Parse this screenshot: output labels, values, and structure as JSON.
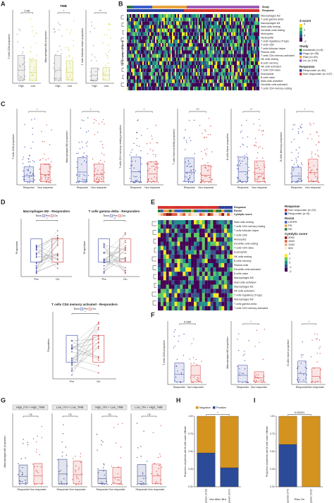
{
  "panels": {
    "A": {
      "letter": "A",
      "categories": [
        "High",
        "Low"
      ],
      "plots": [
        {
          "ylabel": "T cells CD8 proportion",
          "p": "0.06"
        },
        {
          "title": "TMB",
          "ylabel": "Macrophages M1 proportion",
          "p": "*"
        },
        {
          "ylabel": "T cells follicular helper proportion",
          "p": "**"
        }
      ]
    },
    "B": {
      "letter": "B",
      "ylabel": "Pool resistant biopsies",
      "rows": [
        "Macrophages M2",
        "T cells gamma delta",
        "Macrophages M1",
        "Mast cells resting",
        "Dendritic cells resting",
        "Monocytes",
        "Neutrophils",
        "T cells regulatory (Tregs)",
        "T cells CD8",
        "T cells follicular helper",
        "Plasma cells",
        "T cells CD4 memory activated",
        "NK cells resting",
        "B cells memory",
        "NK cells activated",
        "T cells CD4 naive",
        "Eosinophils",
        "B cells naive",
        "Mast cells activated",
        "Dendritic cells activated",
        "T cells CD4 memory resting"
      ],
      "header": [
        "Study",
        "Response"
      ],
      "zscore_title": "Z-score",
      "zscore_ticks": [
        "4",
        "2",
        "0",
        "-2"
      ],
      "study_title": "Study",
      "study": [
        "Auslander (n=8)",
        "Hugo (n=28)",
        "Riaz (n=49)",
        "Liu (n=103)"
      ],
      "response_title": "Response",
      "response": [
        "Responder (n=81)",
        "Non responder (n=107)"
      ]
    },
    "C": {
      "letter": "C",
      "categories": [
        "Response",
        "Non response"
      ],
      "plots": [
        {
          "ylabel": "T cells CD8 proportion",
          "p": "*"
        },
        {
          "ylabel": "Macrophages M2 proportion",
          "p": "*"
        },
        {
          "ylabel": "T cells CD4 memory resting proportion",
          "p": "*"
        },
        {
          "ylabel": "T cells Gamma Delta proportion",
          "p": "***"
        },
        {
          "ylabel": "B cells Naive proportion",
          "p": "**"
        },
        {
          "ylabel": "B cells Memory proportion",
          "p": "*"
        }
      ]
    },
    "D": {
      "letter": "D",
      "ylabel": "Proportion",
      "legend_title": "Time",
      "times": [
        "Pre",
        "On"
      ],
      "plots": [
        {
          "title": "Macrophages M2 - Responders",
          "p": "*"
        },
        {
          "title": "T cells gamma delta - Responders",
          "p": "**"
        },
        {
          "title": "T cells CD4 memory activated - Responders",
          "p": "*"
        }
      ]
    },
    "E": {
      "letter": "E",
      "header": [
        "Response",
        "Recist",
        "Cytolytic score"
      ],
      "rows": [
        "Mast cells resting",
        "T cells CD4 memory resting",
        "T cells follicular helper",
        "T cells CD8",
        "Monocytes",
        "Dendritic cells resting",
        "T cells CD4 naive",
        "Eosinophils",
        "NK cells resting",
        "B cells memory",
        "Plasma cells",
        "Dendritic cells activated",
        "B cells naive",
        "Macrophages M0",
        "Mast cells activated",
        "Macrophages M1",
        "NK cells activated",
        "T cells regulatory (Tregs)",
        "Macrophages M2",
        "T cells gamma delta",
        "T cells CD4 memory activated"
      ],
      "response_title": "Response",
      "response": [
        "Non responder (n=22)",
        "Responder (n=5)"
      ],
      "recist_title": "Recist",
      "recist": [
        "CR/PR",
        "PD",
        "SD"
      ],
      "cytolytic_title": "Cytolytic score",
      "cytolytic": [
        "2000",
        "1500",
        "1000",
        "500"
      ],
      "z_ticks": [
        "2",
        "1",
        "0",
        "-1",
        "-2"
      ]
    },
    "F": {
      "letter": "F",
      "categories": [
        "Responder",
        "Non responder"
      ],
      "plots": [
        {
          "ylabel": "T cells CD8 proportion",
          "p": "0.089"
        },
        {
          "ylabel": "Macrophages M2 proportion",
          "p": "*"
        },
        {
          "ylabel": "B cells naive proportion",
          "p": "*"
        }
      ]
    },
    "G": {
      "letter": "G",
      "ylabel": "Macrophages M2 proportion",
      "categories": [
        "Responder",
        "Non responder"
      ],
      "plots": [
        {
          "title": "High_ITH + High_TMB",
          "p": "ns"
        },
        {
          "title": "Low_ITH + Low_TMB",
          "p": "ns"
        },
        {
          "title": "High_ITH + Low_TMB",
          "p": "ns"
        },
        {
          "title": "Low_ITH + High_TMB",
          "p": "ns"
        }
      ]
    },
    "H": {
      "letter": "H"
    },
    "I": {
      "letter": "I"
    }
  },
  "chart_data": [
    {
      "type": "bar",
      "stacked": true,
      "legend": "top",
      "p": "*",
      "ylabel": "Proportion of patients with B cells naive infiltrate",
      "xlabel": "Van Allen Bra",
      "categories": [
        "Responder (n=13)",
        "Non responder (n=27)"
      ],
      "series": [
        {
          "name": "Positive",
          "color": "#2b4a97",
          "values": [
            0.48,
            0.27
          ]
        },
        {
          "name": "Negative",
          "color": "#d4921f",
          "values": [
            0.52,
            0.73
          ]
        }
      ],
      "ylim": [
        0,
        1
      ],
      "yticks": [
        {
          "value": 0,
          "label": "0.00"
        },
        {
          "value": 0.25,
          "label": "0.25"
        },
        {
          "value": 0.5,
          "label": "0.50"
        },
        {
          "value": 0.75,
          "label": "0.75"
        },
        {
          "value": 1,
          "label": "1.00"
        }
      ]
    },
    {
      "type": "bar",
      "stacked": true,
      "p": "0.00001",
      "ylabel": "Proportion of patients with B cells naive infiltrate",
      "xlabel": "Riaz On",
      "categories": [
        "Responder (n=5)",
        "Non responder (n=22)"
      ],
      "series": [
        {
          "name": "Positive",
          "color": "#2b4a97",
          "values": [
            0.6,
            0
          ]
        },
        {
          "name": "Negative",
          "color": "#d4921f",
          "values": [
            0.4,
            1
          ]
        }
      ],
      "ylim": [
        0,
        1
      ],
      "yticks": [
        {
          "value": 0,
          "label": "0.00"
        },
        {
          "value": 0.25,
          "label": "0.25"
        },
        {
          "value": 0.5,
          "label": "0.50"
        },
        {
          "value": 0.75,
          "label": "0.75"
        },
        {
          "value": 1,
          "label": "1.00"
        }
      ]
    }
  ]
}
